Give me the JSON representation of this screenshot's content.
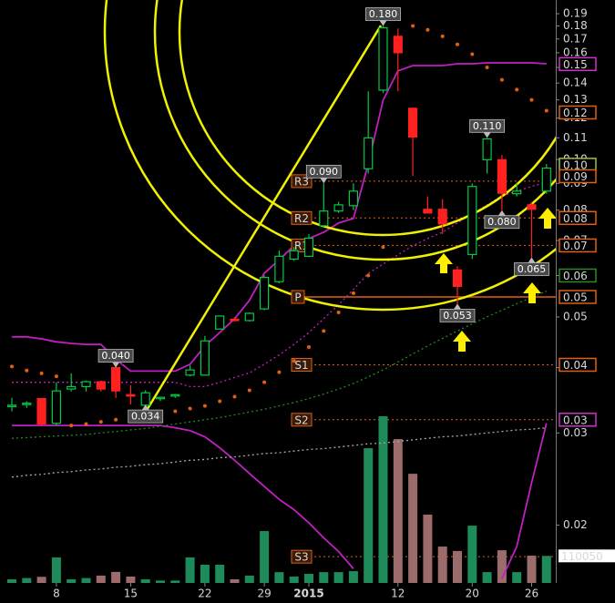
{
  "chart_data": {
    "type": "candlestick",
    "log_scale": true,
    "ylim": [
      0.0155,
      0.2018
    ],
    "yticks": [
      0.02,
      0.03,
      0.04,
      0.05,
      0.06,
      0.07,
      0.08,
      0.09,
      {
        "value": 0.1,
        "label": "0.10"
      },
      0.11,
      0.12,
      0.13,
      0.14,
      0.15,
      0.16,
      0.17,
      0.18,
      0.19
    ],
    "categories": [
      null,
      null,
      null,
      "8",
      null,
      null,
      null,
      null,
      "15",
      null,
      null,
      null,
      null,
      "22",
      null,
      null,
      null,
      "29",
      null,
      null,
      "2015",
      null,
      null,
      null,
      null,
      null,
      "12",
      null,
      null,
      null,
      null,
      "20",
      null,
      null,
      null,
      "26",
      null
    ],
    "up_color": "#00cc44",
    "down_color": "#ff2020",
    "candles": {
      "open": [
        0.0337,
        0.034,
        0.0349,
        0.0313,
        0.0364,
        0.0368,
        0.0376,
        0.04,
        0.0355,
        0.0339,
        0.0349,
        0.0353,
        0.0387,
        0.0387,
        0.0474,
        0.0495,
        0.0492,
        0.0518,
        0.0584,
        0.0645,
        0.0653,
        0.0747,
        0.0797,
        0.0816,
        0.096,
        0.1357,
        0.172,
        0.1253,
        0.0803,
        0.0803,
        0.0615,
        0.0658,
        0.0999,
        0.0999,
        0.086,
        0.0819,
        0.087
      ],
      "high": [
        0.035,
        0.0345,
        0.035,
        0.0375,
        0.039,
        0.0378,
        0.0378,
        0.04,
        0.037,
        0.0362,
        0.0352,
        0.0356,
        0.0404,
        0.046,
        0.048,
        0.05,
        0.051,
        0.06,
        0.067,
        0.068,
        0.072,
        0.09,
        0.083,
        0.09,
        0.135,
        0.18,
        0.178,
        0.1253,
        0.085,
        0.084,
        0.0625,
        0.09,
        0.11,
        0.102,
        0.09,
        0.083,
        0.098
      ],
      "low": [
        0.033,
        0.0335,
        0.0309,
        0.031,
        0.036,
        0.036,
        0.036,
        0.035,
        0.034,
        0.0338,
        0.0345,
        0.035,
        0.0385,
        0.0387,
        0.0474,
        0.049,
        0.049,
        0.0515,
        0.058,
        0.064,
        0.065,
        0.074,
        0.079,
        0.08,
        0.094,
        0.134,
        0.135,
        0.093,
        0.079,
        0.072,
        0.053,
        0.0645,
        0.094,
        0.08,
        0.085,
        0.065,
        0.086
      ],
      "close": [
        0.0339,
        0.0342,
        0.0312,
        0.0361,
        0.0368,
        0.0376,
        0.0364,
        0.0361,
        0.0353,
        0.0358,
        0.0351,
        0.0355,
        0.0396,
        0.045,
        0.0502,
        0.0492,
        0.0508,
        0.0595,
        0.0653,
        0.0669,
        0.0707,
        0.0797,
        0.0819,
        0.087,
        0.11,
        0.1786,
        0.16,
        0.1104,
        0.079,
        0.0753,
        0.0572,
        0.0888,
        0.1095,
        0.0862,
        0.087,
        0.0803,
        0.0963
      ]
    },
    "volume": {
      "ylim": [
        0,
        1000000
      ],
      "up_color": "#1e8c5a",
      "down_color": "#9c6b6b",
      "values": [
        15000,
        20000,
        25000,
        104000,
        15000,
        20000,
        30000,
        45000,
        26000,
        15000,
        10000,
        10000,
        104000,
        74000,
        74000,
        15000,
        30000,
        211000,
        44000,
        26000,
        37000,
        44000,
        44000,
        48000,
        548000,
        678000,
        585000,
        444000,
        278000,
        148000,
        130000,
        233000,
        44000,
        133000,
        44000,
        111000,
        110050
      ]
    },
    "indicators": [
      {
        "color": "#c020c0",
        "style": "solid",
        "values": [
          0.0458,
          0.0458,
          0.0454,
          0.0448,
          0.0445,
          0.0443,
          0.0443,
          0.0415,
          0.0394,
          0.0394,
          0.0394,
          0.0394,
          0.0406,
          0.044,
          0.0467,
          0.0496,
          0.0538,
          0.0606,
          0.0643,
          0.0684,
          0.0706,
          0.0726,
          0.0756,
          0.0771,
          0.0981,
          0.1299,
          0.1477,
          0.1512,
          0.1512,
          0.1512,
          0.1524,
          0.1524,
          0.153,
          0.153,
          0.153,
          0.153,
          0.1524
        ]
      },
      {
        "color": "#c020c0",
        "style": "solid",
        "values": [
          0.031,
          0.031,
          0.031,
          0.031,
          0.031,
          0.031,
          0.031,
          0.031,
          0.031,
          0.031,
          0.031,
          0.0307,
          0.0303,
          0.0295,
          0.0281,
          0.0266,
          0.0251,
          0.0237,
          0.0224,
          0.0214,
          0.0202,
          0.0189,
          0.0178,
          0.0165,
          null,
          null,
          null,
          null,
          null,
          null,
          null,
          null,
          null,
          0.0158,
          0.0182,
          0.0241,
          0.0313
        ]
      },
      {
        "color": "#c020c0",
        "style": "dotted",
        "values": [
          0.0375,
          0.0375,
          0.0375,
          0.0375,
          0.0375,
          0.0375,
          0.0375,
          0.0375,
          0.0375,
          0.0375,
          0.0375,
          0.0375,
          0.0368,
          0.0368,
          0.0375,
          0.0383,
          0.0391,
          0.0406,
          0.0423,
          0.0443,
          0.0467,
          0.0496,
          0.0528,
          0.0564,
          0.0606,
          0.0631,
          0.0657,
          0.0684,
          0.0706,
          0.0726,
          0.0756,
          0.0787,
          0.0819,
          0.0852,
          0.087,
          0.0888,
          0.0905
        ]
      },
      {
        "color": "#1f8a1f",
        "style": "dotted",
        "values": [
          0.0293,
          0.0294,
          0.0295,
          0.0296,
          0.0297,
          0.0298,
          0.03,
          0.0302,
          0.0304,
          0.0306,
          0.0309,
          0.0312,
          0.0315,
          0.0318,
          0.0321,
          0.0325,
          0.0329,
          0.0333,
          0.0338,
          0.0343,
          0.0349,
          0.0356,
          0.0364,
          0.0373,
          0.0384,
          0.0396,
          0.041,
          0.0425,
          0.044,
          0.0455,
          0.047,
          0.0485,
          0.05,
          0.0515,
          0.053,
          0.0545,
          0.056
        ]
      },
      {
        "color": "#a8a8a8",
        "style": "dotted",
        "values": [
          0.0247,
          0.0249,
          0.025,
          0.0252,
          0.0253,
          0.0255,
          0.0256,
          0.0258,
          0.0259,
          0.0261,
          0.0262,
          0.0264,
          0.0266,
          0.0267,
          0.0269,
          0.027,
          0.0272,
          0.0274,
          0.0275,
          0.0277,
          0.0279,
          0.028,
          0.0282,
          0.0284,
          0.0286,
          0.0287,
          0.0289,
          0.0291,
          0.0293,
          0.0295,
          0.0296,
          0.0298,
          0.03,
          0.0302,
          0.0304,
          0.0305,
          0.0307
        ]
      },
      {
        "color": "#e06010",
        "style": "dots",
        "values": [
          0.0402,
          0.0395,
          0.039,
          0.0385,
          0.031,
          0.0312,
          0.0315,
          0.0318,
          0.032,
          0.0323,
          0.0327,
          0.033,
          0.0334,
          0.0338,
          0.0345,
          0.0352,
          0.0362,
          0.0375,
          0.0392,
          0.0412,
          0.0438,
          0.047,
          0.051,
          0.0555,
          0.06,
          0.068,
          0.186,
          0.18,
          0.177,
          0.172,
          0.166,
          0.159,
          0.15,
          0.142,
          0.136,
          0.13,
          0.124
        ]
      }
    ],
    "pivots": [
      {
        "label": "R3",
        "value": 0.0909
      },
      {
        "label": "R2",
        "value": 0.0773
      },
      {
        "label": "R1",
        "value": 0.0685
      },
      {
        "label": "P",
        "value": 0.0546
      },
      {
        "label": "S1",
        "value": 0.0405
      },
      {
        "label": "S2",
        "value": 0.0318
      },
      {
        "label": "S3",
        "value": 0.0174
      }
    ],
    "pivot_color": "#e06010",
    "price_tags": [
      {
        "value": 0.1522,
        "label": "0.15",
        "color": "#cc33cc"
      },
      {
        "value": 0.123,
        "label": "0.12",
        "color": "#e06010"
      },
      {
        "value": 0.0977,
        "label": "0.10",
        "color": "#a0c040"
      },
      {
        "value": 0.0929,
        "label": "0.09",
        "color": "#e06010"
      },
      {
        "value": 0.0773,
        "label": "0.08",
        "color": "#e06010"
      },
      {
        "value": 0.0685,
        "label": "0.07",
        "color": "#e06010"
      },
      {
        "value": 0.06,
        "label": "0.06",
        "color": "#2a8a2a"
      },
      {
        "value": 0.0546,
        "label": "0.05",
        "color": "#e06010"
      },
      {
        "value": 0.0405,
        "label": "0.04",
        "color": "#e06010"
      },
      {
        "value": 0.0318,
        "label": "0.03",
        "color": "#cc33cc"
      }
    ],
    "annotations": [
      {
        "index": 25,
        "value": 0.18,
        "label": "0.180"
      },
      {
        "index": 21,
        "value": 0.09,
        "label": "0.090"
      },
      {
        "index": 32,
        "value": 0.11,
        "label": "0.110"
      },
      {
        "index": 33,
        "value": 0.08,
        "label": "0.080"
      },
      {
        "index": 35,
        "value": 0.065,
        "label": "0.065"
      },
      {
        "index": 30,
        "value": 0.053,
        "label": "0.053"
      },
      {
        "index": 7,
        "value": 0.04,
        "label": "0.040"
      },
      {
        "index": 9,
        "value": 0.034,
        "label": "0.034"
      }
    ]
  }
}
